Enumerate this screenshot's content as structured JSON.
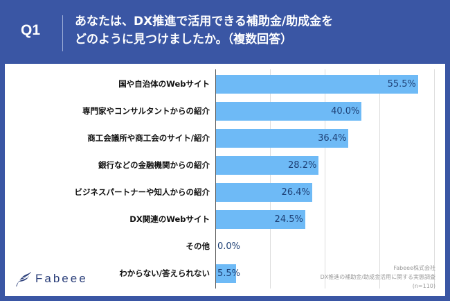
{
  "header": {
    "question_id": "Q1",
    "question_line1": "あなたは、DX推進で活用できる補助金/助成金を",
    "question_line2": "どのように見つけましたか。（複数回答）"
  },
  "chart_data": {
    "type": "bar",
    "orientation": "horizontal",
    "title": "あなたは、DX推進で活用できる補助金/助成金をどのように見つけましたか。（複数回答）",
    "categories": [
      "国や自治体のWebサイト",
      "専門家やコンサルタントからの紹介",
      "商工会議所や商工会のサイト/紹介",
      "銀行などの金融機関からの紹介",
      "ビジネスパートナーや知人からの紹介",
      "DX関連のWebサイト",
      "その他",
      "わからない/答えられない"
    ],
    "values": [
      55.5,
      40.0,
      36.4,
      28.2,
      26.4,
      24.5,
      0.0,
      5.5
    ],
    "value_labels": [
      "55.5%",
      "40.0%",
      "36.4%",
      "28.2%",
      "26.4%",
      "24.5%",
      "0.0%",
      "5.5%"
    ],
    "unit": "%",
    "xlim": [
      0,
      62
    ],
    "gridlines": [
      15,
      30,
      45,
      60
    ],
    "grid": true,
    "bar_color": "#6ebaf6",
    "label_color": "#1d3f74"
  },
  "footer": {
    "logo_text": "Fabeee",
    "source_company": "Fabeee株式会社",
    "source_survey": "DX推進の補助金/助成金活用に関する実態調査",
    "source_n": "(n=110)"
  },
  "colors": {
    "frame": "#3a56a4",
    "bar": "#6ebaf6",
    "logo": "#2b3f7a"
  }
}
